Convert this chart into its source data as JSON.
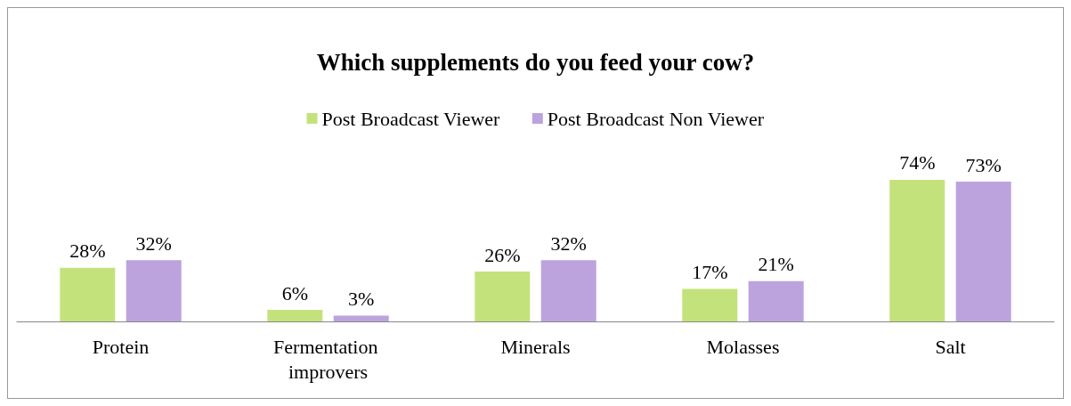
{
  "chart_data": {
    "type": "bar",
    "title": "Which supplements do you feed your cow?",
    "categories": [
      "Protein",
      "Fermentation improvers",
      "Minerals",
      "Molasses",
      "Salt"
    ],
    "series": [
      {
        "name": "Post Broadcast Viewer",
        "color": "#c4e27c",
        "values": [
          28,
          6,
          26,
          17,
          74
        ],
        "value_labels": [
          "28%",
          "6%",
          "26%",
          "17%",
          "74%"
        ]
      },
      {
        "name": "Post Broadcast Non Viewer",
        "color": "#bca3dd",
        "values": [
          32,
          3,
          32,
          21,
          73
        ],
        "value_labels": [
          "32%",
          "3%",
          "32%",
          "21%",
          "73%"
        ]
      }
    ],
    "legend": "top",
    "tick_labels": "x"
  }
}
